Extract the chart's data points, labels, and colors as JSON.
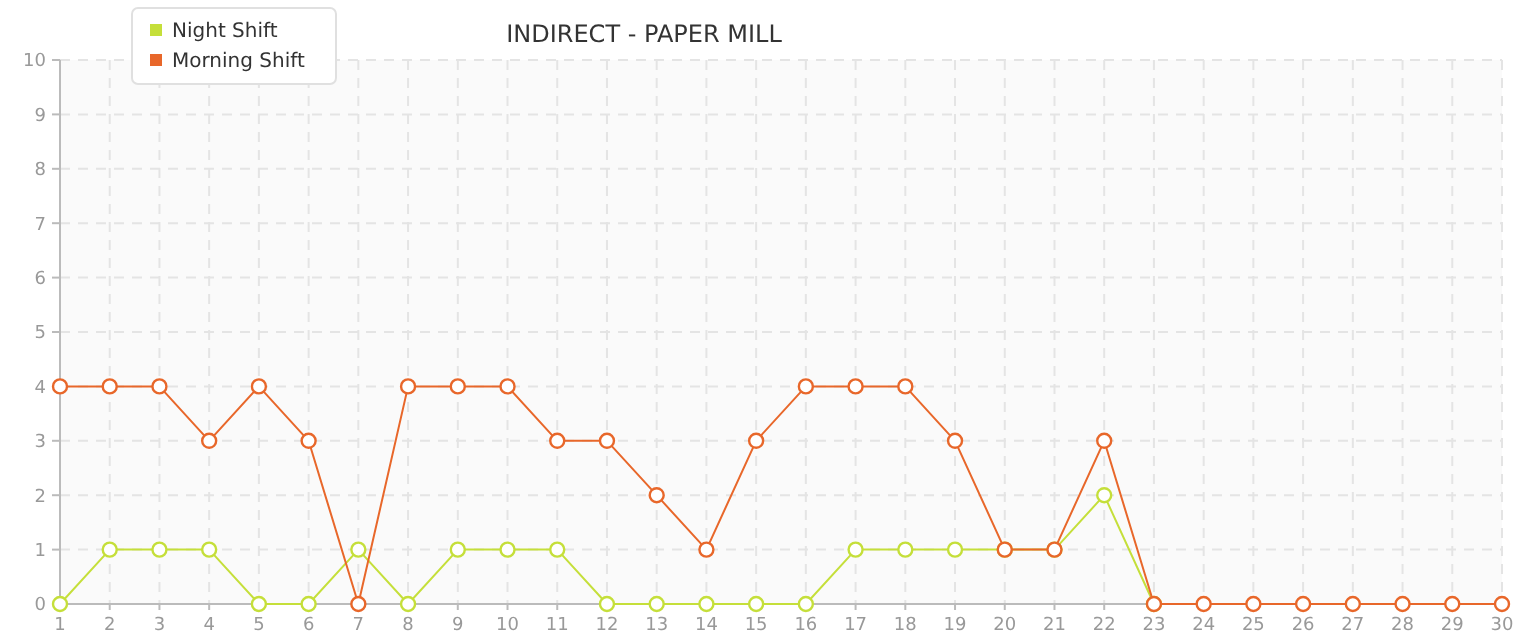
{
  "chart_data": {
    "type": "line",
    "title": "INDIRECT - PAPER MILL",
    "x": [
      1,
      2,
      3,
      4,
      5,
      6,
      7,
      8,
      9,
      10,
      11,
      12,
      13,
      14,
      15,
      16,
      17,
      18,
      19,
      20,
      21,
      22,
      23,
      24,
      25,
      26,
      27,
      28,
      29,
      30
    ],
    "series": [
      {
        "name": "Night Shift",
        "color": "#c5df3a",
        "values": [
          0,
          1,
          1,
          1,
          0,
          0,
          1,
          0,
          1,
          1,
          1,
          0,
          0,
          0,
          0,
          0,
          1,
          1,
          1,
          1,
          1,
          2,
          0,
          null,
          null,
          null,
          null,
          null,
          null,
          null
        ]
      },
      {
        "name": "Morning Shift",
        "color": "#e8672a",
        "values": [
          4,
          4,
          4,
          3,
          4,
          3,
          0,
          4,
          4,
          4,
          3,
          3,
          2,
          1,
          3,
          4,
          4,
          4,
          3,
          1,
          1,
          3,
          0,
          0,
          0,
          0,
          0,
          0,
          0,
          0
        ]
      }
    ],
    "xlim": [
      1,
      30
    ],
    "xticks": [
      1,
      2,
      3,
      4,
      5,
      6,
      7,
      8,
      9,
      10,
      11,
      12,
      13,
      14,
      15,
      16,
      17,
      18,
      19,
      20,
      21,
      22,
      23,
      24,
      25,
      26,
      27,
      28,
      29,
      30
    ],
    "ylim": [
      0,
      10
    ],
    "yticks": [
      0,
      1,
      2,
      3,
      4,
      5,
      6,
      7,
      8,
      9,
      10
    ],
    "grid": true,
    "legend": "top left",
    "marker": "circle",
    "line_style": "solid"
  }
}
